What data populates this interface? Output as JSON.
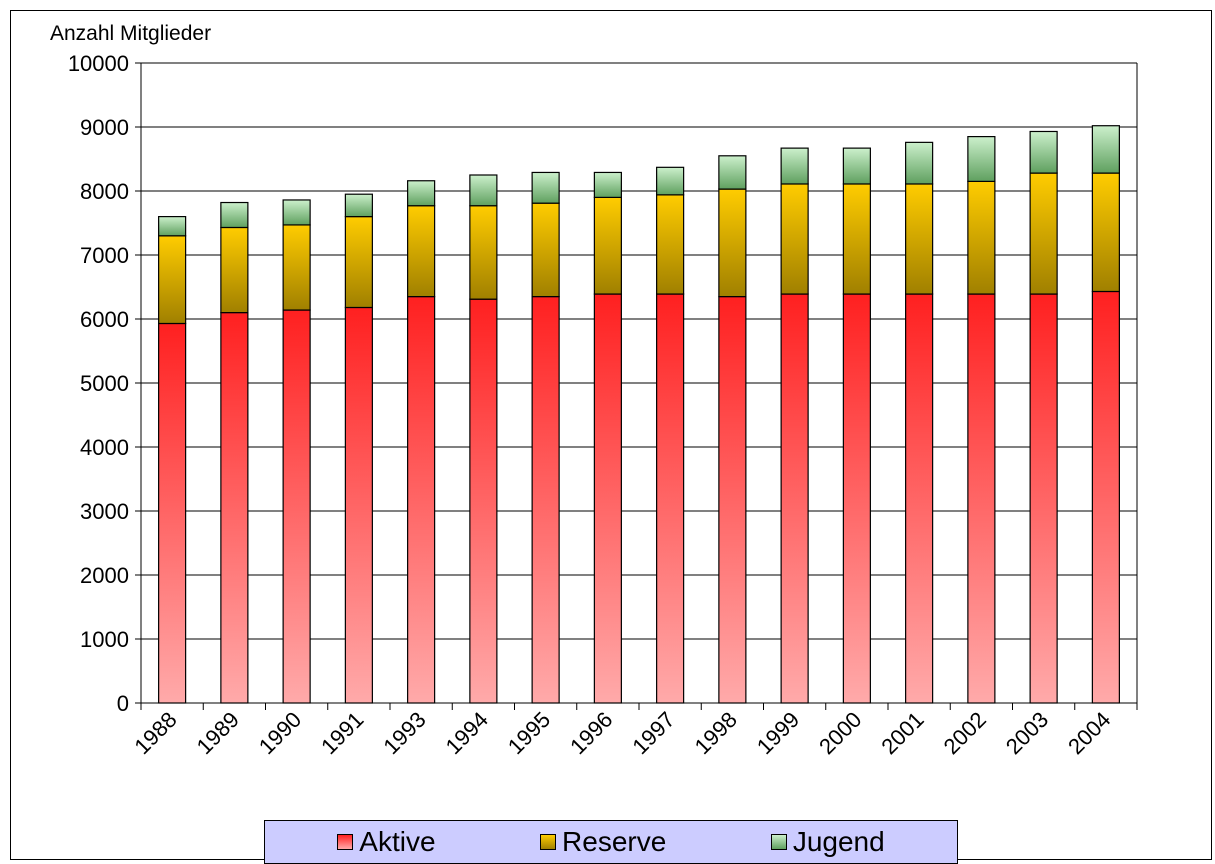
{
  "chart_data": {
    "type": "bar",
    "stacked": true,
    "ylabel": "Anzahl Mitglieder",
    "ylim": [
      0,
      10000
    ],
    "yticks": [
      0,
      1000,
      2000,
      3000,
      4000,
      5000,
      6000,
      7000,
      8000,
      9000,
      10000
    ],
    "grid": true,
    "legend_position": "bottom",
    "categories": [
      "1988",
      "1989",
      "1990",
      "1991",
      "1993",
      "1994",
      "1995",
      "1996",
      "1997",
      "1998",
      "1999",
      "2000",
      "2001",
      "2002",
      "2003",
      "2004"
    ],
    "series": [
      {
        "name": "Aktive",
        "color_top": "#ff2020",
        "color_bottom": "#ffaaaa",
        "values": [
          5930,
          6100,
          6140,
          6180,
          6350,
          6310,
          6350,
          6390,
          6390,
          6350,
          6390,
          6390,
          6390,
          6390,
          6390,
          6430
        ]
      },
      {
        "name": "Reserve",
        "color_top": "#ffcc00",
        "color_bottom": "#a08000",
        "values": [
          1370,
          1330,
          1330,
          1420,
          1420,
          1460,
          1460,
          1510,
          1550,
          1680,
          1720,
          1720,
          1720,
          1760,
          1890,
          1850
        ]
      },
      {
        "name": "Jugend",
        "color_top": "#ccf0cc",
        "color_bottom": "#5fa05f",
        "values": [
          300,
          390,
          390,
          350,
          390,
          480,
          480,
          390,
          430,
          520,
          560,
          560,
          650,
          700,
          650,
          740
        ]
      }
    ]
  }
}
